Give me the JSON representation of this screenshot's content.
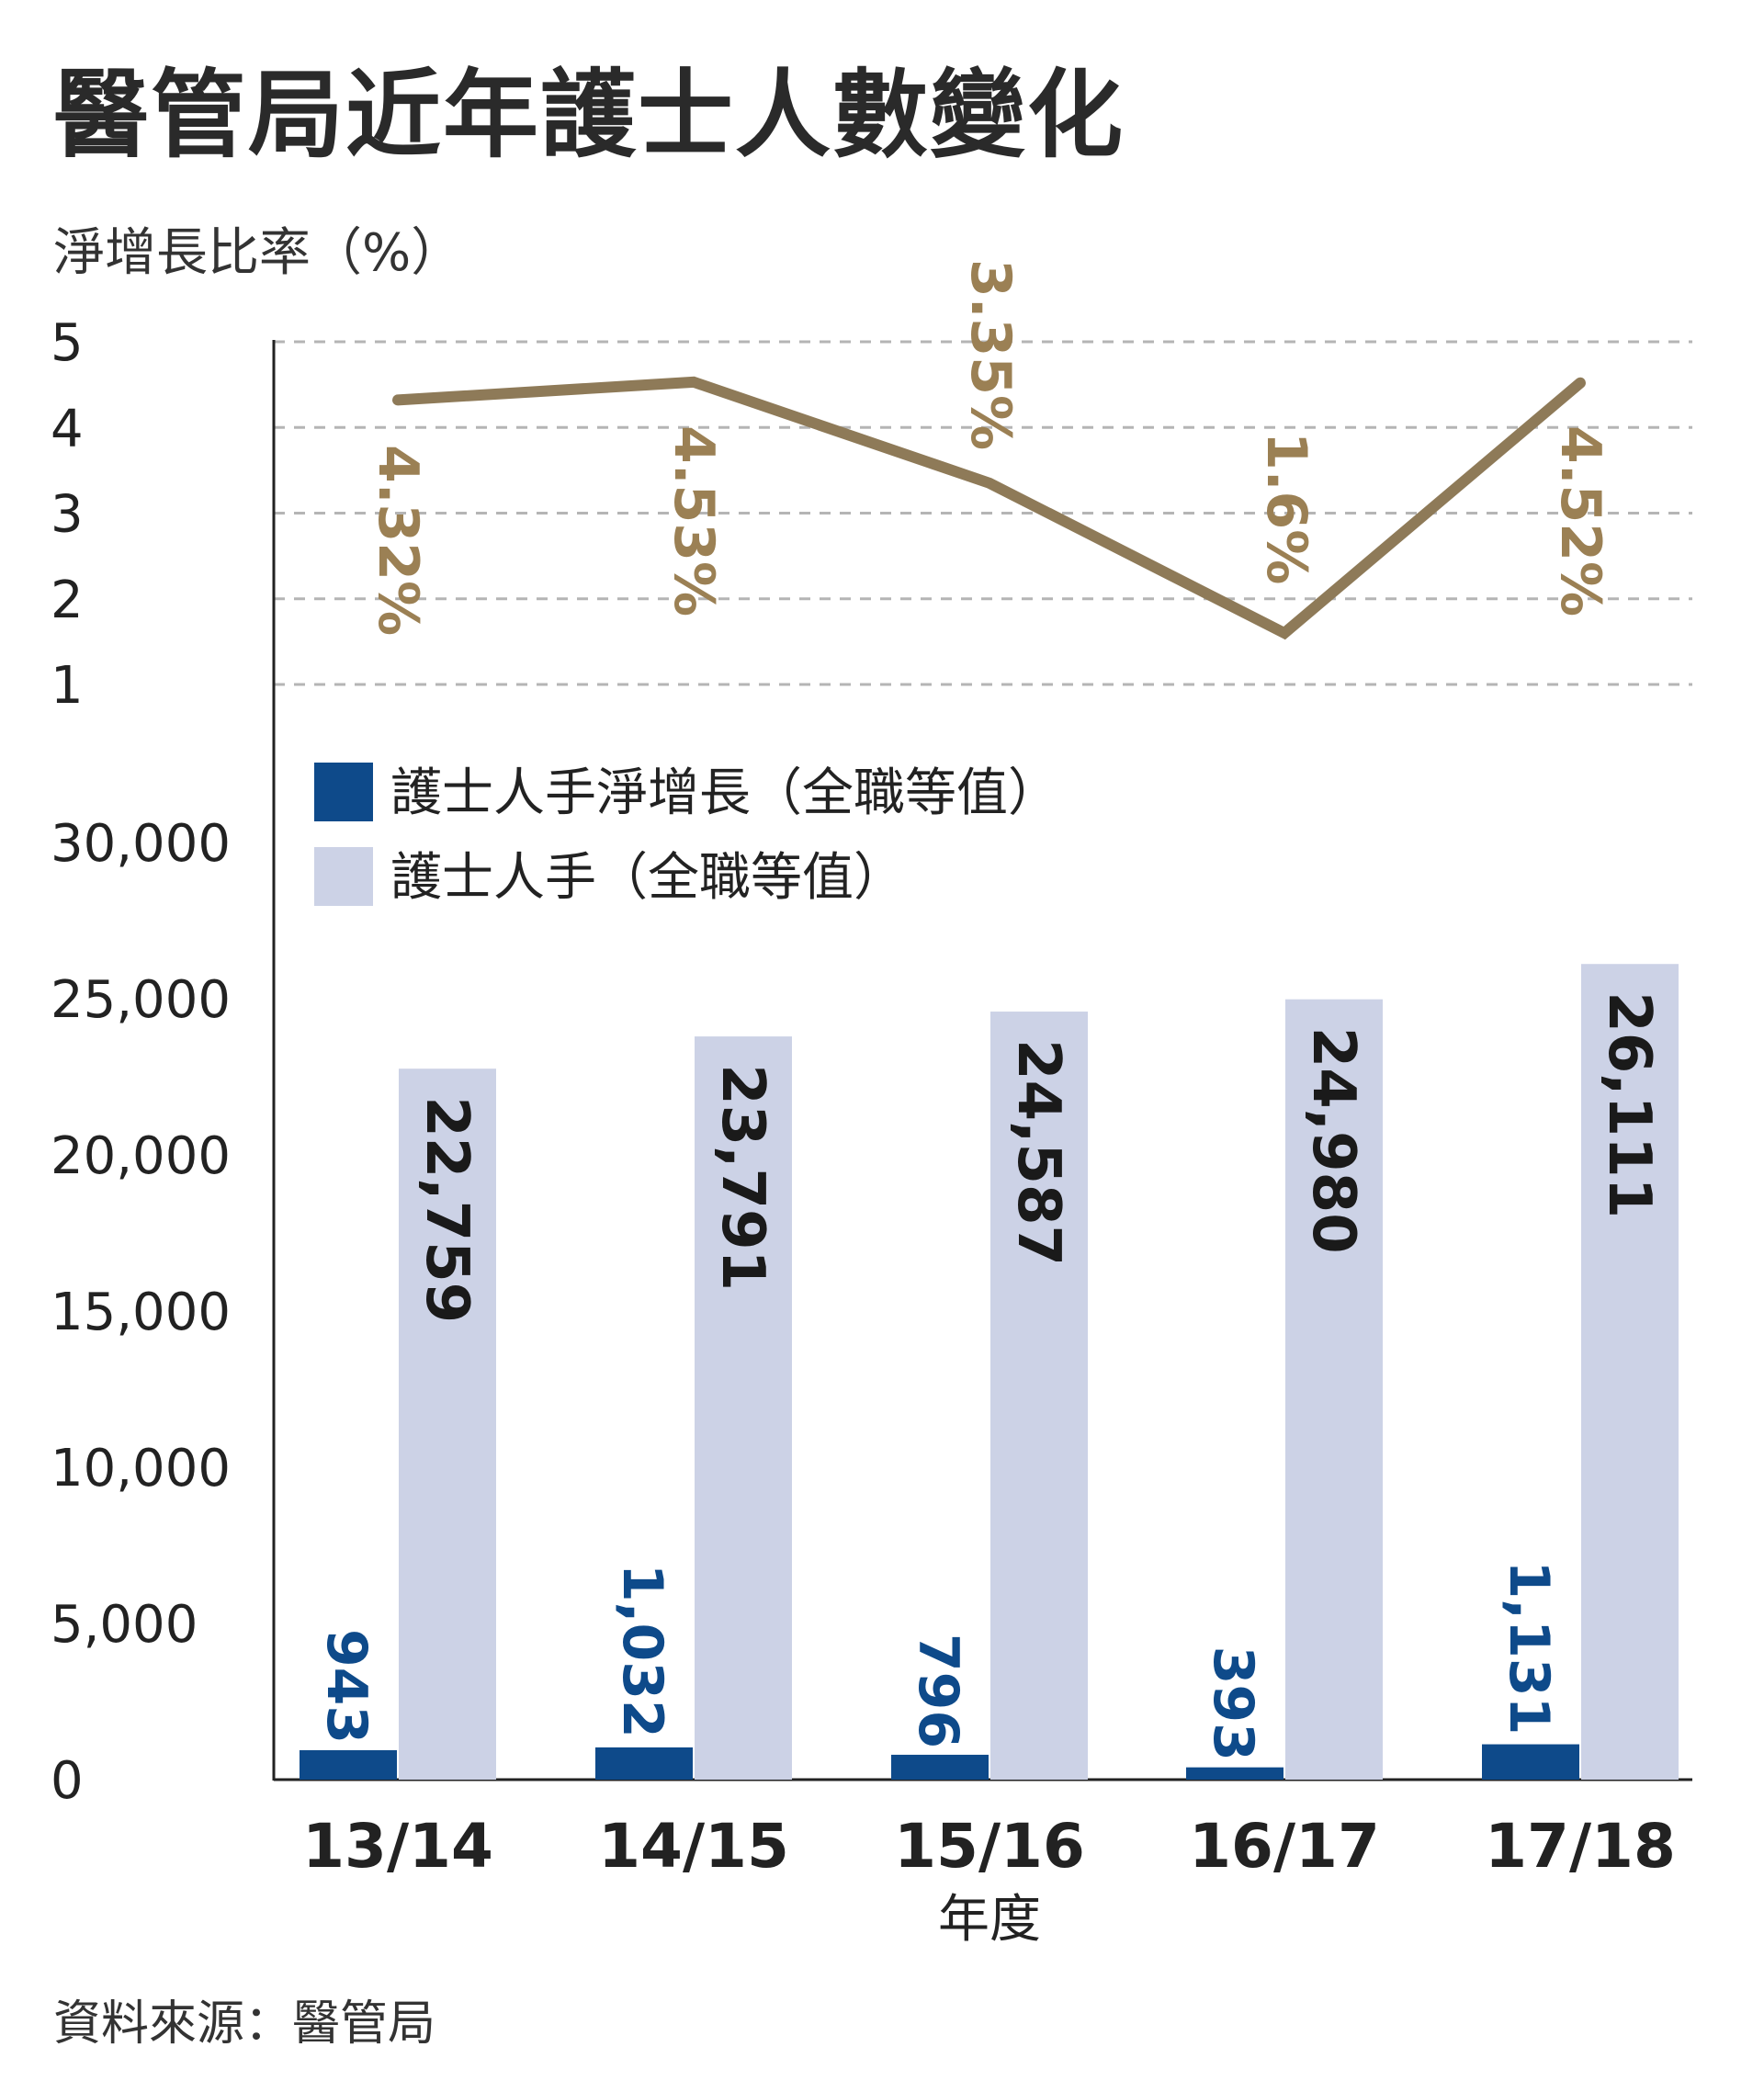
{
  "title": "醫管局近年護士人數變化",
  "source": "資料來源：醫管局",
  "colors": {
    "net_bar": "#0e4a8a",
    "total_bar": "#ccd2e6",
    "rate_line": "#8e7a58",
    "rate_label": "#9b8054"
  },
  "chart_data": {
    "type": "bar",
    "categories": [
      "13/14",
      "14/15",
      "15/16",
      "16/17",
      "17/18"
    ],
    "xlabel": "年度",
    "ylim": [
      0,
      30000
    ],
    "yticks": [
      "0",
      "5,000",
      "10,000",
      "15,000",
      "20,000",
      "25,000",
      "30,000"
    ],
    "series": [
      {
        "name": "護士人手淨增長（全職等值）",
        "values": [
          943,
          1032,
          796,
          393,
          1131
        ],
        "labels": [
          "943",
          "1,032",
          "796",
          "393",
          "1,131"
        ]
      },
      {
        "name": "護士人手（全職等值）",
        "values": [
          22759,
          23791,
          24587,
          24980,
          26111
        ],
        "labels": [
          "22,759",
          "23,791",
          "24,587",
          "24,980",
          "26,111"
        ]
      }
    ],
    "line": {
      "ylabel": "淨增長比率（%）",
      "ylim": [
        1,
        5
      ],
      "yticks": [
        "1",
        "2",
        "3",
        "4",
        "5"
      ],
      "values": [
        4.32,
        4.53,
        3.35,
        1.6,
        4.52
      ],
      "labels": [
        "4.32%",
        "4.53%",
        "3.35%",
        "1.6%",
        "4.52%"
      ]
    }
  }
}
